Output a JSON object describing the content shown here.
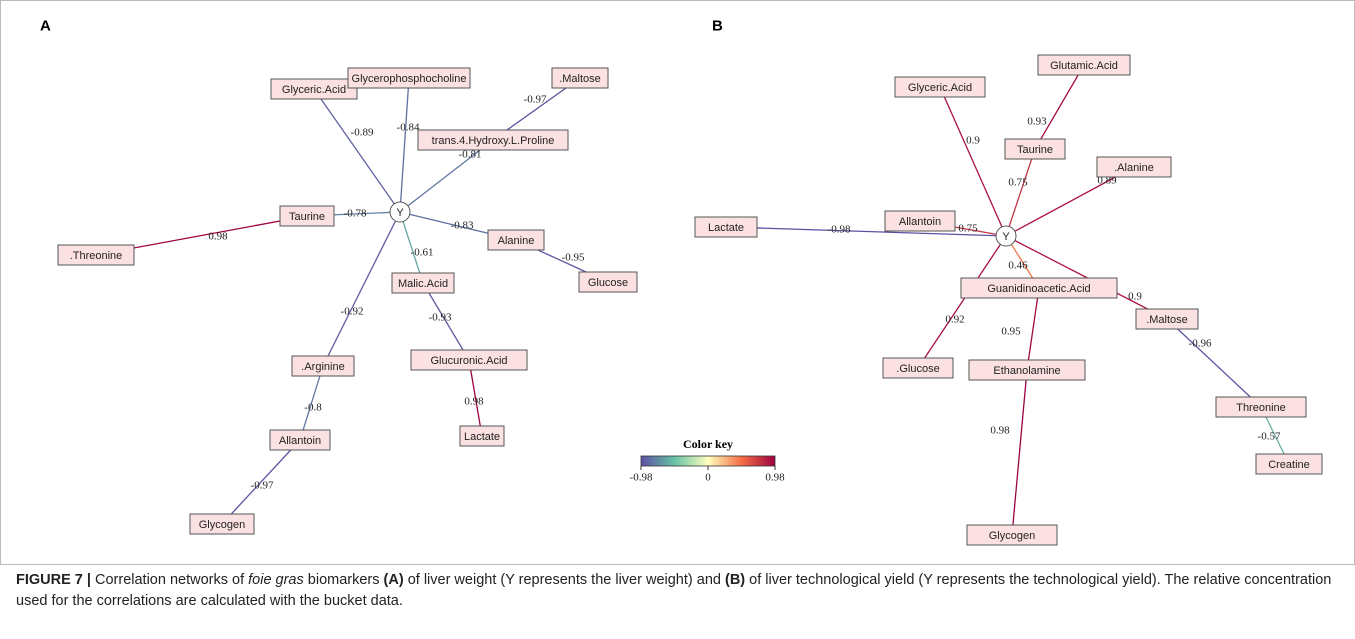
{
  "panels": [
    {
      "label": "A",
      "center": "Y",
      "nodes": [
        "Glyceric.Acid",
        "Glycerophosphocholine",
        ".Maltose",
        "trans.4.Hydroxy.L.Proline",
        "Taurine",
        ".Threonine",
        "Alanine",
        "Glucose",
        "Malic.Acid",
        ".Arginine",
        "Glucuronic.Acid",
        "Allantoin",
        "Lactate",
        "Glycogen"
      ],
      "edge_labels": [
        -0.89,
        -0.84,
        -0.81,
        -0.97,
        -0.78,
        0.98,
        -0.83,
        -0.95,
        -0.61,
        -0.92,
        -0.93,
        0.98,
        -0.8,
        -0.97
      ]
    },
    {
      "label": "B",
      "center": "Y",
      "nodes": [
        "Glyceric.Acid",
        "Glutamic.Acid",
        "Taurine",
        ".Alanine",
        "Lactate",
        "Allantoin",
        "Guanidinoacetic.Acid",
        ".Maltose",
        ".Glucose",
        "Ethanolamine",
        "Threonine",
        "Creatine",
        "Glycogen"
      ],
      "edge_labels": [
        0.9,
        0.93,
        0.75,
        0.89,
        -0.98,
        0.75,
        0.46,
        0.92,
        0.9,
        0.95,
        0.98,
        -0.96,
        -0.57
      ]
    }
  ],
  "color_key": {
    "title": "Color key",
    "ticks": [
      -0.98,
      0,
      0.98
    ]
  },
  "caption": [
    "FIGURE 7 | ",
    "Correlation networks of ",
    "foie gras",
    " biomarkers ",
    "(A)",
    " of liver weight (Y represents the liver weight) and ",
    "(B)",
    " of liver technological yield (Y represents the technological yield). The relative concentration used for the correlations are calculated with the bucket data."
  ]
}
